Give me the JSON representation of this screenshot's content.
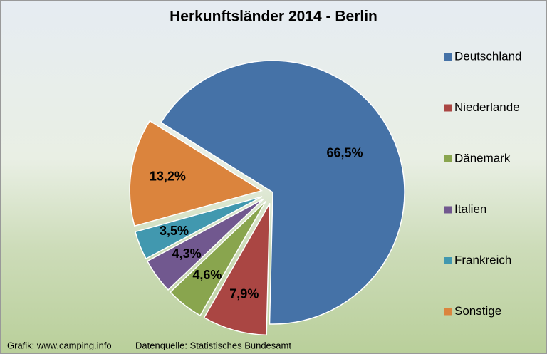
{
  "chart_data": {
    "type": "pie",
    "title": "Herkunftsländer 2014 - Berlin",
    "categories": [
      "Deutschland",
      "Niederlande",
      "Dänemark",
      "Italien",
      "Frankreich",
      "Sonstige"
    ],
    "values": [
      66.5,
      7.9,
      4.6,
      4.3,
      3.5,
      13.2
    ],
    "value_labels": [
      "66,5%",
      "7,9%",
      "4,6%",
      "4,3%",
      "3,5%",
      "13,2%"
    ],
    "colors": [
      "#4572a7",
      "#aa4643",
      "#89a54e",
      "#71588f",
      "#4198af",
      "#db843d"
    ],
    "legend": "right",
    "footer": [
      "Grafik: www.camping.info",
      "Datenquelle: Statistisches Bundesamt"
    ]
  }
}
